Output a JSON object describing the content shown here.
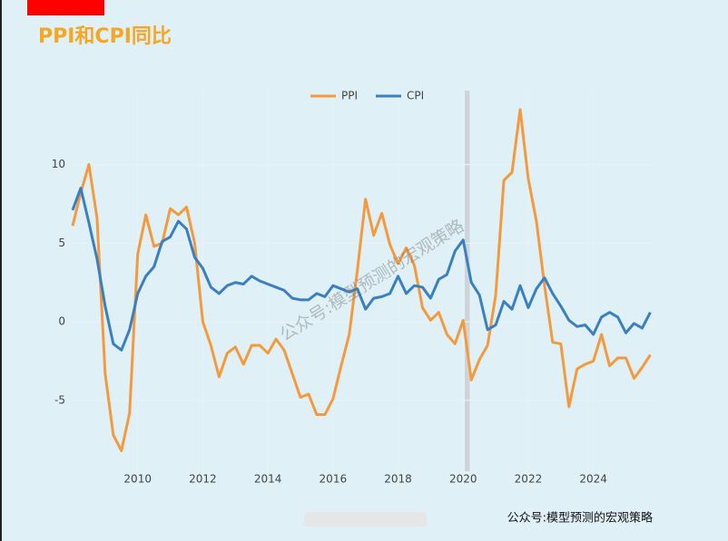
{
  "chart_data": {
    "type": "line",
    "title": "PPI和CPI同比",
    "watermark": "公众号:模型预测的宏观策略",
    "footer": "公众号:模型预测的宏观策略",
    "x": [
      2008.0,
      2008.25,
      2008.5,
      2008.75,
      2009.0,
      2009.25,
      2009.5,
      2009.75,
      2010.0,
      2010.25,
      2010.5,
      2010.75,
      2011.0,
      2011.25,
      2011.5,
      2011.75,
      2012.0,
      2012.25,
      2012.5,
      2012.75,
      2013.0,
      2013.25,
      2013.5,
      2013.75,
      2014.0,
      2014.25,
      2014.5,
      2014.75,
      2015.0,
      2015.25,
      2015.5,
      2015.75,
      2016.0,
      2016.25,
      2016.5,
      2016.75,
      2017.0,
      2017.25,
      2017.5,
      2017.75,
      2018.0,
      2018.25,
      2018.5,
      2018.75,
      2019.0,
      2019.25,
      2019.5,
      2019.75,
      2020.0,
      2020.25,
      2020.5,
      2020.75,
      2021.0,
      2021.25,
      2021.5,
      2021.75,
      2022.0,
      2022.25,
      2022.5,
      2022.75,
      2023.0,
      2023.25,
      2023.5,
      2023.75,
      2024.0,
      2024.25,
      2024.5,
      2024.75,
      2025.0,
      2025.25,
      2025.5,
      2025.75
    ],
    "series": [
      {
        "name": "PPI",
        "color": "#f59a3c",
        "values": [
          6.1,
          8.2,
          10.0,
          6.6,
          -3.3,
          -7.2,
          -8.2,
          -5.8,
          4.3,
          6.8,
          4.8,
          5.0,
          7.2,
          6.8,
          7.3,
          5.0,
          0.0,
          -1.5,
          -3.5,
          -2.0,
          -1.6,
          -2.7,
          -1.5,
          -1.5,
          -2.0,
          -1.1,
          -1.8,
          -3.3,
          -4.8,
          -4.6,
          -5.9,
          -5.9,
          -4.9,
          -2.8,
          -0.8,
          3.3,
          7.8,
          5.5,
          6.9,
          4.9,
          3.7,
          4.7,
          3.6,
          0.9,
          0.1,
          0.6,
          -0.8,
          -1.4,
          0.1,
          -3.7,
          -2.4,
          -1.5,
          1.7,
          9.0,
          9.5,
          13.5,
          9.1,
          6.4,
          2.3,
          -1.3,
          -1.4,
          -5.4,
          -3.0,
          -2.7,
          -2.5,
          -0.8,
          -2.8,
          -2.3,
          -2.3,
          -3.6,
          -2.9,
          -2.1
        ]
      },
      {
        "name": "CPI",
        "color": "#3a7fc1",
        "values": [
          7.1,
          8.5,
          6.3,
          4.0,
          1.0,
          -1.4,
          -1.8,
          -0.5,
          1.8,
          2.9,
          3.5,
          5.1,
          5.4,
          6.4,
          5.9,
          4.1,
          3.4,
          2.2,
          1.8,
          2.3,
          2.5,
          2.4,
          2.9,
          2.6,
          2.4,
          2.2,
          2.0,
          1.5,
          1.4,
          1.4,
          1.8,
          1.6,
          2.3,
          2.1,
          1.9,
          2.1,
          0.8,
          1.5,
          1.6,
          1.8,
          2.9,
          1.8,
          2.3,
          2.2,
          1.5,
          2.7,
          3.0,
          4.5,
          5.2,
          2.5,
          1.7,
          -0.5,
          -0.2,
          1.3,
          0.8,
          2.3,
          0.9,
          2.1,
          2.8,
          1.8,
          1.0,
          0.1,
          -0.3,
          -0.2,
          -0.8,
          0.3,
          0.6,
          0.3,
          -0.7,
          -0.1,
          -0.4,
          0.6
        ]
      }
    ],
    "xlim": [
      2008.0,
      2025.85
    ],
    "xticks": [
      2010,
      2012,
      2014,
      2016,
      2018,
      2020,
      2022,
      2024
    ],
    "ylim": [
      -9.5,
      14.7
    ],
    "yticks": [
      -5,
      0,
      5,
      10
    ],
    "shade_x": [
      2020.05,
      2020.2
    ],
    "grid": true,
    "legend": "top"
  }
}
